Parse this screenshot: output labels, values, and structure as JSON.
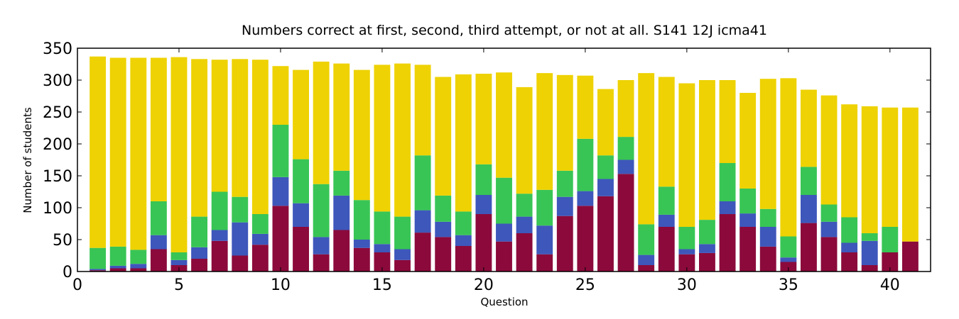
{
  "chart_data": {
    "type": "bar",
    "stacked": true,
    "title": "Numbers correct at first, second, third attempt, or not at all. S141 12J icma41",
    "xlabel": "Question",
    "ylabel": "Number of students",
    "xlim": [
      0,
      42
    ],
    "ylim": [
      0,
      350
    ],
    "xticks": [
      0,
      5,
      10,
      15,
      20,
      25,
      30,
      35,
      40
    ],
    "yticks": [
      0,
      50,
      100,
      150,
      200,
      250,
      300,
      350
    ],
    "grid": false,
    "legend": "none",
    "x": [
      1,
      2,
      3,
      4,
      5,
      6,
      7,
      8,
      9,
      10,
      11,
      12,
      13,
      14,
      15,
      16,
      17,
      18,
      19,
      20,
      21,
      22,
      23,
      24,
      25,
      26,
      27,
      28,
      29,
      30,
      31,
      32,
      33,
      34,
      35,
      36,
      37,
      38,
      39,
      40,
      41
    ],
    "series": [
      {
        "color": "#8b0a3b",
        "values": [
          2,
          5,
          5,
          35,
          10,
          20,
          48,
          25,
          42,
          103,
          70,
          27,
          65,
          37,
          30,
          18,
          61,
          54,
          40,
          90,
          47,
          60,
          27,
          87,
          103,
          118,
          153,
          10,
          70,
          27,
          29,
          90,
          70,
          39,
          15,
          76,
          54,
          30,
          10,
          30,
          47
        ]
      },
      {
        "color": "#3e57bb",
        "values": [
          2,
          4,
          7,
          22,
          8,
          18,
          17,
          52,
          17,
          45,
          37,
          27,
          54,
          13,
          13,
          17,
          35,
          24,
          17,
          30,
          28,
          26,
          45,
          30,
          23,
          27,
          22,
          16,
          19,
          8,
          14,
          20,
          21,
          31,
          7,
          44,
          24,
          15,
          38,
          0,
          0
        ]
      },
      {
        "color": "#38c555",
        "values": [
          33,
          30,
          22,
          53,
          12,
          48,
          60,
          40,
          31,
          82,
          69,
          83,
          39,
          62,
          51,
          51,
          86,
          41,
          37,
          48,
          72,
          36,
          56,
          41,
          82,
          37,
          36,
          48,
          44,
          35,
          38,
          60,
          39,
          28,
          33,
          44,
          27,
          40,
          12,
          40,
          0
        ]
      },
      {
        "color": "#eed203",
        "values": [
          300,
          296,
          301,
          225,
          306,
          247,
          207,
          216,
          242,
          92,
          140,
          192,
          168,
          204,
          230,
          240,
          142,
          186,
          215,
          142,
          165,
          167,
          183,
          150,
          99,
          104,
          89,
          237,
          172,
          225,
          219,
          130,
          150,
          204,
          248,
          121,
          171,
          177,
          199,
          187,
          210
        ]
      }
    ]
  }
}
